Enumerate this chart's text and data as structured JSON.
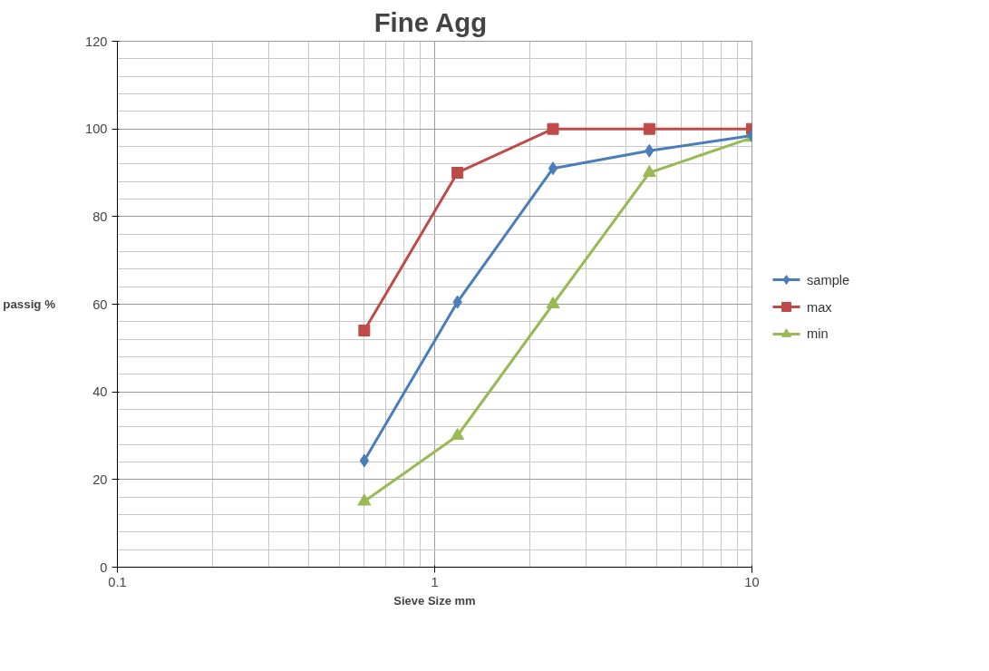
{
  "chart_data": {
    "type": "line",
    "title": "Fine  Agg",
    "xlabel": "Sieve Size mm",
    "ylabel": "passig %",
    "x": [
      0.6,
      1.18,
      2.36,
      4.75,
      10
    ],
    "series": [
      {
        "name": "sample",
        "color": "#4a7ebb",
        "marker": "diamond",
        "values": [
          24.3,
          60.5,
          91,
          95,
          98.5
        ]
      },
      {
        "name": "max",
        "color": "#be4b48",
        "marker": "square",
        "values": [
          54,
          90,
          100,
          100,
          100
        ]
      },
      {
        "name": "min",
        "color": "#98b954",
        "marker": "triangle",
        "values": [
          15,
          30,
          60,
          90,
          98
        ]
      }
    ],
    "log": "x",
    "xlim": [
      0.1,
      10
    ],
    "xticks": [
      0.1,
      1,
      10
    ],
    "ylim": [
      0,
      120
    ],
    "yticks": [
      0,
      20,
      40,
      60,
      80,
      100,
      120
    ],
    "grid": true,
    "legend": "right",
    "line_style": "solid"
  }
}
